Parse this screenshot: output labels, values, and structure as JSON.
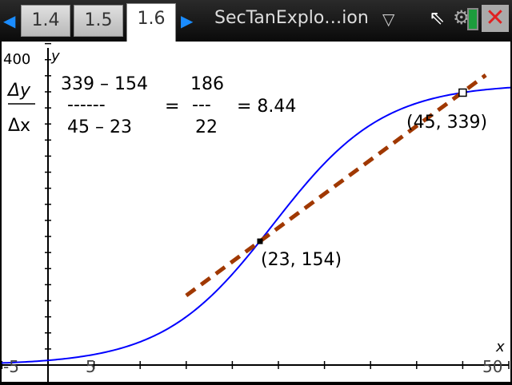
{
  "header": {
    "tabs": [
      {
        "label": "1.4"
      },
      {
        "label": "1.5"
      },
      {
        "label": "1.6",
        "active": true
      }
    ],
    "document_title": "SecTanExplo…ion",
    "icons": [
      "left-arrow-icon",
      "right-arrow-icon",
      "dropdown-icon",
      "cursor-icon",
      "gear-icon",
      "battery-icon",
      "close-icon"
    ]
  },
  "graph": {
    "ymax_label": "400",
    "y_label": "y",
    "x_label": "x",
    "xmin_label": "-5",
    "x5_label": "5",
    "xmax_label": "50",
    "formula": {
      "lhs_num": "Δy",
      "lhs_den": "Δx",
      "num": "339 – 154",
      "dashes": "------",
      "den": "45 –  23",
      "eq1": "=",
      "num2": "186",
      "dashes2": "---",
      "den2": "22",
      "result": "= 8.44"
    },
    "point1_label": "(23, 154)",
    "point2_label": "(45, 339)"
  },
  "chart_data": {
    "type": "line",
    "xlim": [
      -5.2,
      50.3
    ],
    "ylim": [
      0,
      450
    ],
    "curve": {
      "model": "logistic",
      "L": 350,
      "k": 0.167,
      "x0": 24.43,
      "color": "#0000ff"
    },
    "secant": {
      "points": [
        [
          23,
          154
        ],
        [
          45,
          339
        ]
      ],
      "slope": 8.44,
      "color": "#a03800",
      "style": "dashed"
    },
    "xticks_step": 5,
    "grid": false
  }
}
